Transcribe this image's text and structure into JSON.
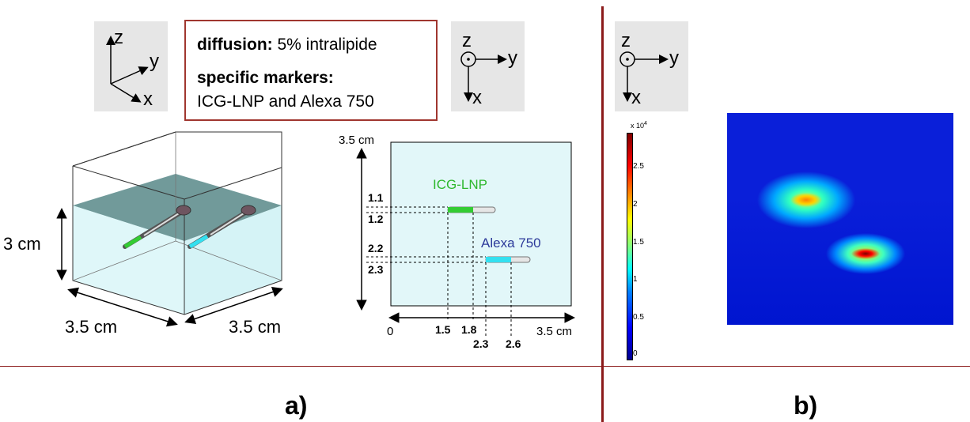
{
  "axes_3d": {
    "z": "z",
    "y": "y",
    "x": "x"
  },
  "axes_top_a": {
    "z": "z",
    "y": "y",
    "x": "x"
  },
  "axes_top_b": {
    "z": "z",
    "y": "y",
    "x": "x"
  },
  "info": {
    "diffusion_label": "diffusion:",
    "diffusion_value": "5% intralipide",
    "markers_label": "specific markers:",
    "markers_value": "ICG-LNP and Alexa 750"
  },
  "cube": {
    "height": "3 cm",
    "width_left": "3.5 cm",
    "width_right": "3.5 cm"
  },
  "topview": {
    "y_size": "3.5 cm",
    "x_size": "3.5 cm",
    "origin": "0",
    "marker1": "ICG-LNP",
    "marker2": "Alexa 750",
    "y_ticks": [
      "1.1",
      "1.2",
      "2.2",
      "2.3"
    ],
    "x_ticks": [
      "1.5",
      "1.8",
      "2.3",
      "2.6"
    ]
  },
  "colorbar": {
    "exponent": "x 10",
    "exponent_power": "4",
    "ticks": [
      "2.5",
      "2",
      "1.5",
      "1",
      "0.5",
      "0"
    ]
  },
  "colors": {
    "green_marker": "#33cc33",
    "cyan_marker": "#33e0f0",
    "divider": "#8b1a1a",
    "tank": "#dff6f8"
  },
  "panels": {
    "a": "a)",
    "b": "b)"
  }
}
